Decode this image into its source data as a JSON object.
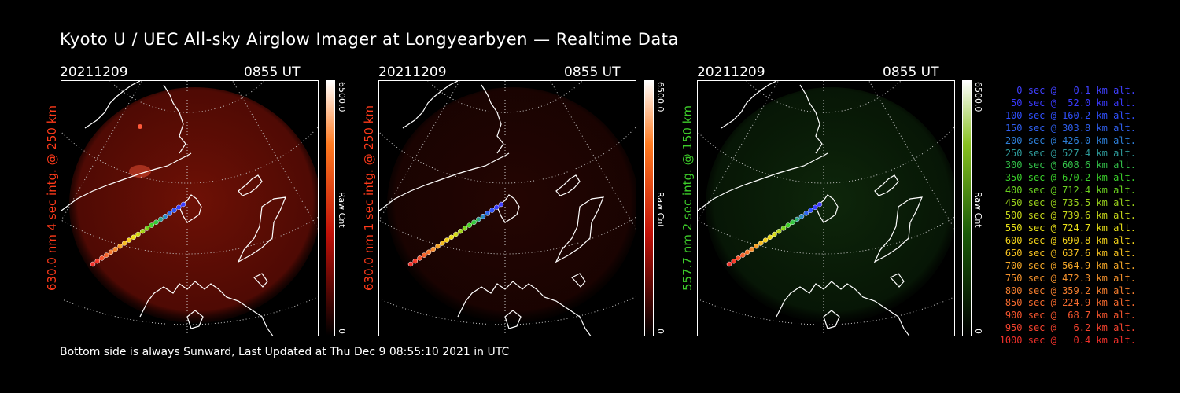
{
  "title": "Kyoto U / UEC All-sky Airglow Imager at Longyearbyen — Realtime Data",
  "footer": "Bottom side is always Sunward, Last Updated at Thu Dec  9 08:55:10 2021 in UTC",
  "panels": [
    {
      "date": "20211209",
      "time": "0855 UT",
      "label": "630.0 nm 4 sec intg. @ 250 km",
      "label_color": "#ff3a1a",
      "cbar_max": "6500.0",
      "cbar_min": "0",
      "cbar_unit": "Raw Cnt",
      "cmap": "red",
      "intensity": 0.55
    },
    {
      "date": "20211209",
      "time": "0855 UT",
      "label": "630.0 nm 1 sec intg. @ 250 km",
      "label_color": "#ff3a1a",
      "cbar_max": "6500.0",
      "cbar_min": "0",
      "cbar_unit": "Raw Cnt",
      "cmap": "red",
      "intensity": 0.18
    },
    {
      "date": "20211209",
      "time": "0855 UT",
      "label": "557.7 nm 2 sec intg. @ 150 km",
      "label_color": "#3dcc2a",
      "cbar_max": "6500.0",
      "cbar_min": "0",
      "cbar_unit": "Raw Cnt",
      "cmap": "green",
      "intensity": 0.35
    }
  ],
  "legend": [
    {
      "text": "0 sec @   0.1 km alt.",
      "color": "#4040ff"
    },
    {
      "text": "50 sec @  52.0 km alt.",
      "color": "#3a3aff"
    },
    {
      "text": "100 sec @ 160.2 km alt.",
      "color": "#3050ff"
    },
    {
      "text": "150 sec @ 303.8 km alt.",
      "color": "#3060f0"
    },
    {
      "text": "200 sec @ 426.0 km alt.",
      "color": "#2e7fd8"
    },
    {
      "text": "250 sec @ 527.4 km alt.",
      "color": "#2e9a9a"
    },
    {
      "text": "300 sec @ 608.6 km alt.",
      "color": "#33c24a"
    },
    {
      "text": "350 sec @ 670.2 km alt.",
      "color": "#3ad02a"
    },
    {
      "text": "400 sec @ 712.4 km alt.",
      "color": "#6ad020"
    },
    {
      "text": "450 sec @ 735.5 km alt.",
      "color": "#9ad21c"
    },
    {
      "text": "500 sec @ 739.6 km alt.",
      "color": "#c8d81a"
    },
    {
      "text": "550 sec @ 724.7 km alt.",
      "color": "#e8e018"
    },
    {
      "text": "600 sec @ 690.8 km alt.",
      "color": "#f2d21a"
    },
    {
      "text": "650 sec @ 637.6 km alt.",
      "color": "#f5c020"
    },
    {
      "text": "700 sec @ 564.9 km alt.",
      "color": "#f5a828"
    },
    {
      "text": "750 sec @ 472.3 km alt.",
      "color": "#f5922c"
    },
    {
      "text": "800 sec @ 359.2 km alt.",
      "color": "#f57e2e"
    },
    {
      "text": "850 sec @ 224.9 km alt.",
      "color": "#f56a2e"
    },
    {
      "text": "900 sec @  68.7 km alt.",
      "color": "#f5552e"
    },
    {
      "text": "950 sec @   6.2 km alt.",
      "color": "#f5432e"
    },
    {
      "text": "1000 sec @   0.4 km alt.",
      "color": "#f0302a"
    }
  ]
}
